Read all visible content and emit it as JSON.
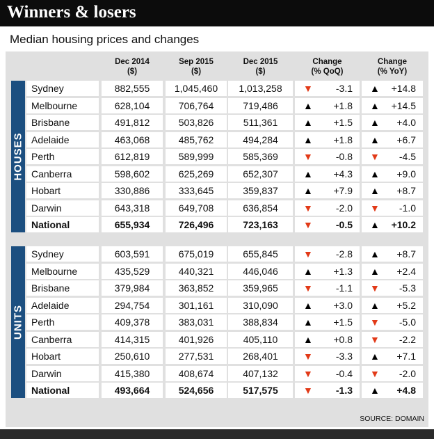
{
  "title": "Winners & losers",
  "subtitle": "Median housing prices and changes",
  "headers": {
    "dec2014": [
      "Dec 2014",
      "($)"
    ],
    "sep2015": [
      "Sep 2015",
      "($)"
    ],
    "dec2015": [
      "Dec 2015",
      "($)"
    ],
    "qoq": [
      "Change",
      "(% QoQ)"
    ],
    "yoy": [
      "Change",
      "(% YoY)"
    ]
  },
  "sections": [
    {
      "label": "HOUSES",
      "rows": [
        {
          "city": "Sydney",
          "dec2014": "882,555",
          "sep2015": "1,045,460",
          "dec2015": "1,013,258",
          "qoq": "-3.1",
          "qoq_dir": "down",
          "yoy": "+14.8",
          "yoy_dir": "up"
        },
        {
          "city": "Melbourne",
          "dec2014": "628,104",
          "sep2015": "706,764",
          "dec2015": "719,486",
          "qoq": "+1.8",
          "qoq_dir": "up",
          "yoy": "+14.5",
          "yoy_dir": "up"
        },
        {
          "city": "Brisbane",
          "dec2014": "491,812",
          "sep2015": "503,826",
          "dec2015": "511,361",
          "qoq": "+1.5",
          "qoq_dir": "up",
          "yoy": "+4.0",
          "yoy_dir": "up"
        },
        {
          "city": "Adelaide",
          "dec2014": "463,068",
          "sep2015": "485,762",
          "dec2015": "494,284",
          "qoq": "+1.8",
          "qoq_dir": "up",
          "yoy": "+6.7",
          "yoy_dir": "up"
        },
        {
          "city": "Perth",
          "dec2014": "612,819",
          "sep2015": "589,999",
          "dec2015": "585,369",
          "qoq": "-0.8",
          "qoq_dir": "down",
          "yoy": "-4.5",
          "yoy_dir": "down"
        },
        {
          "city": "Canberra",
          "dec2014": "598,602",
          "sep2015": "625,269",
          "dec2015": "652,307",
          "qoq": "+4.3",
          "qoq_dir": "up",
          "yoy": "+9.0",
          "yoy_dir": "up"
        },
        {
          "city": "Hobart",
          "dec2014": "330,886",
          "sep2015": "333,645",
          "dec2015": "359,837",
          "qoq": "+7.9",
          "qoq_dir": "up",
          "yoy": "+8.7",
          "yoy_dir": "up"
        },
        {
          "city": "Darwin",
          "dec2014": "643,318",
          "sep2015": "649,708",
          "dec2015": "636,854",
          "qoq": "-2.0",
          "qoq_dir": "down",
          "yoy": "-1.0",
          "yoy_dir": "down"
        },
        {
          "city": "National",
          "dec2014": "655,934",
          "sep2015": "726,496",
          "dec2015": "723,163",
          "qoq": "-0.5",
          "qoq_dir": "down",
          "yoy": "+10.2",
          "yoy_dir": "up",
          "bold": true
        }
      ]
    },
    {
      "label": "UNITS",
      "rows": [
        {
          "city": "Sydney",
          "dec2014": "603,591",
          "sep2015": "675,019",
          "dec2015": "655,845",
          "qoq": "-2.8",
          "qoq_dir": "down",
          "yoy": "+8.7",
          "yoy_dir": "up"
        },
        {
          "city": "Melbourne",
          "dec2014": "435,529",
          "sep2015": "440,321",
          "dec2015": "446,046",
          "qoq": "+1.3",
          "qoq_dir": "up",
          "yoy": "+2.4",
          "yoy_dir": "up"
        },
        {
          "city": "Brisbane",
          "dec2014": "379,984",
          "sep2015": "363,852",
          "dec2015": "359,965",
          "qoq": "-1.1",
          "qoq_dir": "down",
          "yoy": "-5.3",
          "yoy_dir": "down"
        },
        {
          "city": "Adelaide",
          "dec2014": "294,754",
          "sep2015": "301,161",
          "dec2015": "310,090",
          "qoq": "+3.0",
          "qoq_dir": "up",
          "yoy": "+5.2",
          "yoy_dir": "up"
        },
        {
          "city": "Perth",
          "dec2014": "409,378",
          "sep2015": "383,031",
          "dec2015": "388,834",
          "qoq": "+1.5",
          "qoq_dir": "up",
          "yoy": "-5.0",
          "yoy_dir": "down"
        },
        {
          "city": "Canberra",
          "dec2014": "414,315",
          "sep2015": "401,926",
          "dec2015": "405,110",
          "qoq": "+0.8",
          "qoq_dir": "up",
          "yoy": "-2.2",
          "yoy_dir": "down"
        },
        {
          "city": "Hobart",
          "dec2014": "250,610",
          "sep2015": "277,531",
          "dec2015": "268,401",
          "qoq": "-3.3",
          "qoq_dir": "down",
          "yoy": "+7.1",
          "yoy_dir": "up"
        },
        {
          "city": "Darwin",
          "dec2014": "415,380",
          "sep2015": "408,674",
          "dec2015": "407,132",
          "qoq": "-0.4",
          "qoq_dir": "down",
          "yoy": "-2.0",
          "yoy_dir": "down"
        },
        {
          "city": "National",
          "dec2014": "493,664",
          "sep2015": "524,656",
          "dec2015": "517,575",
          "qoq": "-1.3",
          "qoq_dir": "down",
          "yoy": "+4.8",
          "yoy_dir": "up",
          "bold": true
        }
      ]
    }
  ],
  "source": "SOURCE: DOMAIN",
  "colors": {
    "up_arrow": "#000000",
    "down_arrow": "#e23a18",
    "side_label": "#1c4f80",
    "title_bg": "#0c0c0c",
    "panel_bg": "#e0e0e0"
  },
  "icons": {
    "up": "up-triangle-icon",
    "down": "down-triangle-icon"
  }
}
